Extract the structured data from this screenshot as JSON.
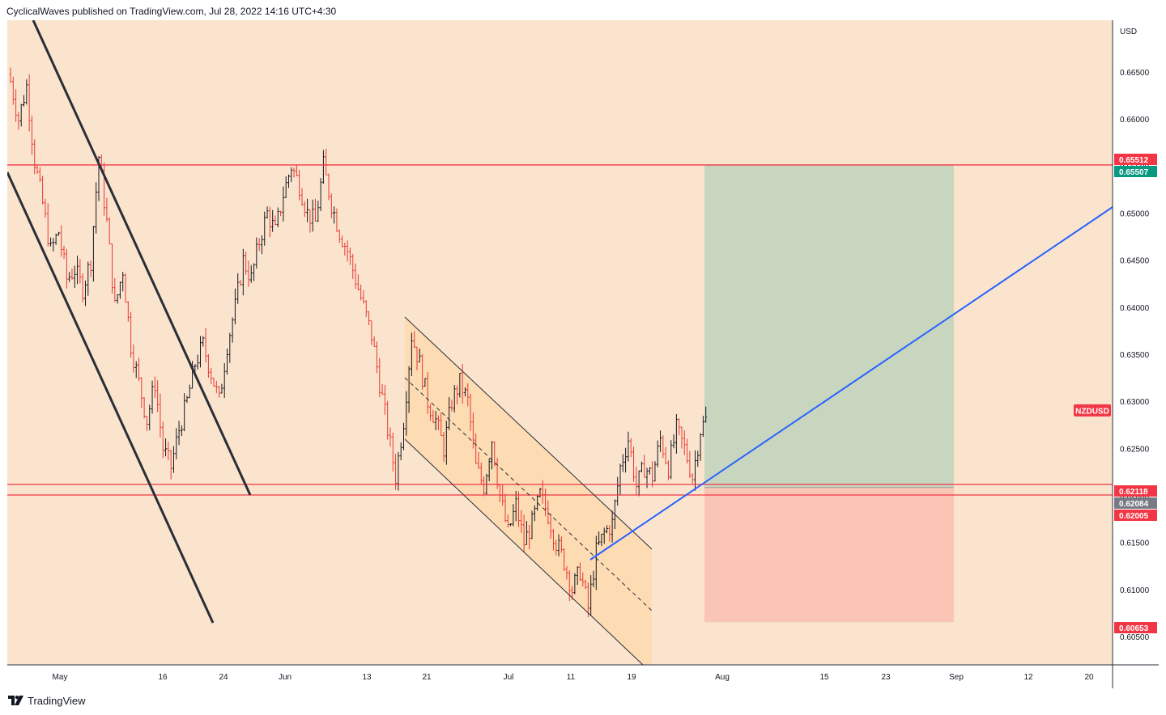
{
  "header": {
    "published_text": "CyclicalWaves published on TradingView.com, Jul 28, 2022 14:16 UTC+4:30"
  },
  "footer": {
    "brand": "TradingView",
    "logo_icon": "tradingview-logo-icon"
  },
  "colors": {
    "background": "#fbe4cd",
    "axis_background": "#ffffff",
    "candle_up": "#131722",
    "candle_down": "#e53935",
    "hline": "#f23645",
    "trend_blue": "#2962ff",
    "channel_line": "#2a2e39",
    "target_zone": "#c8d6c0",
    "stop_zone": "#fac5b4",
    "channel_fill": "#fdd9b0",
    "label_red": "#f23645",
    "label_green": "#089981",
    "label_gray": "#787b86"
  },
  "chart_data": {
    "type": "candlestick",
    "symbol_label": "NZDUSD",
    "currency_label": "USD",
    "ylim": [
      0.602,
      0.6705
    ],
    "y_ticks": [
      "0.66500",
      "0.66000",
      "0.65500",
      "0.65000",
      "0.64500",
      "0.64000",
      "0.63500",
      "0.63000",
      "0.62500",
      "0.62000",
      "0.61500",
      "0.61000",
      "0.60500"
    ],
    "x_ticks": [
      "May",
      "16",
      "24",
      "Jun",
      "13",
      "21",
      "Jul",
      "11",
      "19",
      "Aug",
      "15",
      "23",
      "Sep",
      "12",
      "20"
    ],
    "price_labels": [
      {
        "text": "0.65512",
        "value": 0.65512,
        "color": "red"
      },
      {
        "text": "0.65507",
        "value": 0.65507,
        "color": "green"
      },
      {
        "text": "0.62118",
        "value": 0.62118,
        "color": "red"
      },
      {
        "text": "0.62084",
        "value": 0.62084,
        "color": "gray"
      },
      {
        "text": "0.62005",
        "value": 0.62005,
        "color": "red"
      },
      {
        "text": "0.60653",
        "value": 0.60653,
        "color": "red"
      }
    ],
    "horizontal_levels": [
      0.65512,
      0.62118,
      0.62005
    ],
    "position": {
      "entry": 0.62084,
      "target": 0.65507,
      "stop": 0.60653
    },
    "candle_path": [
      0.664,
      0.66,
      0.6635,
      0.6555,
      0.651,
      0.646,
      0.648,
      0.643,
      0.644,
      0.642,
      0.645,
      0.656,
      0.649,
      0.64,
      0.644,
      0.636,
      0.632,
      0.628,
      0.632,
      0.625,
      0.623,
      0.627,
      0.63,
      0.634,
      0.636,
      0.633,
      0.63,
      0.636,
      0.64,
      0.645,
      0.643,
      0.647,
      0.65,
      0.648,
      0.652,
      0.655,
      0.653,
      0.65,
      0.649,
      0.655,
      0.651,
      0.648,
      0.646,
      0.643,
      0.64,
      0.637,
      0.632,
      0.627,
      0.622,
      0.628,
      0.637,
      0.634,
      0.63,
      0.628,
      0.625,
      0.63,
      0.632,
      0.63,
      0.623,
      0.621,
      0.626,
      0.62,
      0.616,
      0.619,
      0.615,
      0.617,
      0.62,
      0.618,
      0.615,
      0.613,
      0.61,
      0.612,
      0.608,
      0.614,
      0.616,
      0.617,
      0.623,
      0.626,
      0.621,
      0.623,
      0.622,
      0.626,
      0.623,
      0.627,
      0.625,
      0.622,
      0.627,
      0.6285
    ]
  }
}
